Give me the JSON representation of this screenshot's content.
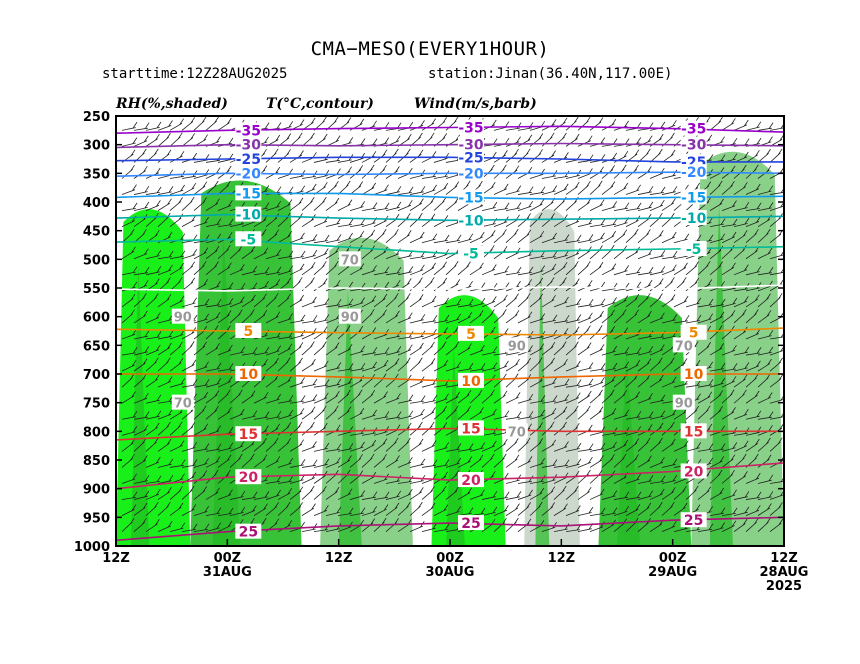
{
  "header": {
    "title": "CMA−MESO(EVERY1HOUR)",
    "starttime": "starttime:12Z28AUG2025",
    "station": "station:Jinan(36.40N,117.00E)"
  },
  "legend": {
    "rh": "RH(%,shaded)",
    "temp": "T(°C,contour)",
    "wind": "Wind(m/s,barb)"
  },
  "chart_data": {
    "type": "heatmap",
    "title": "CMA−MESO(EVERY1HOUR)",
    "ylabel": "",
    "xlabel": "",
    "y_axis": {
      "reversed": true,
      "levels_hpa": [
        250,
        300,
        350,
        400,
        450,
        500,
        550,
        600,
        650,
        700,
        750,
        800,
        850,
        900,
        950,
        1000
      ],
      "ylim": [
        1000,
        250
      ]
    },
    "x_axis": {
      "reversed": true,
      "note_order_left_to_right": true,
      "ticks": [
        {
          "label": "12Z",
          "date": ""
        },
        {
          "label": "00Z",
          "date": "31AUG"
        },
        {
          "label": "12Z",
          "date": ""
        },
        {
          "label": "00Z",
          "date": "30AUG"
        },
        {
          "label": "12Z",
          "date": ""
        },
        {
          "label": "00Z",
          "date": "29AUG"
        },
        {
          "label": "12Z",
          "date": "28AUG",
          "year": "2025"
        }
      ],
      "hours_from_start": [
        72,
        60,
        48,
        36,
        24,
        12,
        0
      ]
    },
    "rh_shading_levels": [
      70,
      90
    ],
    "rh_colors": {
      "lt70": "#ffffff",
      "ge70": "#c8d4c8",
      "ge80": "#7ccc7c",
      "ge90": "#00ee00",
      "ge95": "#22bb22"
    },
    "rh_regions": [
      {
        "hours": [
          72,
          64
        ],
        "p_top": 400,
        "p_bottom": 1000,
        "rh": 90
      },
      {
        "hours": [
          64,
          52
        ],
        "p_top": 350,
        "p_bottom": 1000,
        "rh": 95
      },
      {
        "hours": [
          50,
          40
        ],
        "p_top": 450,
        "p_bottom": 1000,
        "rh": 80
      },
      {
        "hours": [
          38,
          30
        ],
        "p_top": 550,
        "p_bottom": 1000,
        "rh": 90
      },
      {
        "hours": [
          28,
          22
        ],
        "p_top": 400,
        "p_bottom": 1000,
        "rh": 70
      },
      {
        "hours": [
          20,
          10
        ],
        "p_top": 550,
        "p_bottom": 1000,
        "rh": 95
      },
      {
        "hours": [
          10,
          0
        ],
        "p_top": 300,
        "p_bottom": 1000,
        "rh": 80
      }
    ],
    "temperature_contours": [
      {
        "value": -35,
        "color": "#9900cc",
        "p": [
          280,
          275,
          272,
          270,
          268,
          272,
          278
        ]
      },
      {
        "value": -30,
        "color": "#8833aa",
        "p": [
          305,
          300,
          302,
          300,
          298,
          300,
          302
        ]
      },
      {
        "value": -25,
        "color": "#2244dd",
        "p": [
          328,
          325,
          322,
          322,
          325,
          330,
          330
        ]
      },
      {
        "value": -20,
        "color": "#3388ff",
        "p": [
          355,
          350,
          352,
          350,
          350,
          348,
          350
        ]
      },
      {
        "value": -15,
        "color": "#1199ee",
        "p": [
          392,
          385,
          385,
          392,
          395,
          392,
          390
        ]
      },
      {
        "value": -10,
        "color": "#00aaaa",
        "p": [
          428,
          422,
          428,
          432,
          430,
          428,
          425
        ]
      },
      {
        "value": -5,
        "color": "#00bb99",
        "p": [
          470,
          465,
          478,
          490,
          485,
          482,
          478
        ]
      },
      {
        "value": 0,
        "color": "#ffffff",
        "p": [
          552,
          555,
          550,
          552,
          548,
          552,
          545
        ]
      },
      {
        "value": 5,
        "color": "#ee8800",
        "p": [
          622,
          625,
          628,
          630,
          632,
          628,
          620
        ]
      },
      {
        "value": 10,
        "color": "#ee6600",
        "p": [
          700,
          700,
          705,
          712,
          705,
          700,
          700
        ]
      },
      {
        "value": 15,
        "color": "#dd3333",
        "p": [
          815,
          805,
          800,
          795,
          800,
          800,
          800
        ]
      },
      {
        "value": 20,
        "color": "#cc2266",
        "p": [
          900,
          880,
          875,
          885,
          880,
          870,
          855
        ]
      },
      {
        "value": 25,
        "color": "#aa1177",
        "p": [
          990,
          975,
          965,
          960,
          965,
          955,
          950
        ]
      }
    ],
    "temperature_labels": [
      "-35",
      "-30",
      "-25",
      "-20",
      "-15",
      "-10",
      "-5",
      "5",
      "10",
      "15",
      "20",
      "25"
    ],
    "rh_labels": [
      "70",
      "90"
    ],
    "wind_barbs": true
  }
}
